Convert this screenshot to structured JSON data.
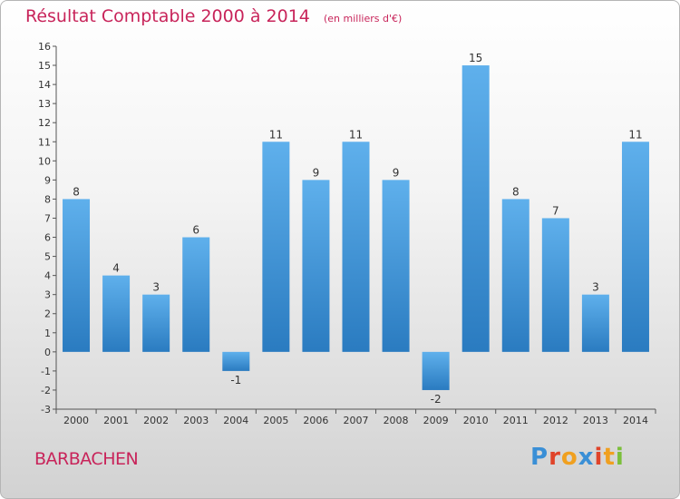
{
  "title": "Résultat Comptable 2000 à 2014",
  "title_unit": "(en milliers d'€)",
  "commune": "BARBACHEN",
  "logo": {
    "text": "Proxiti",
    "letter_colors": [
      "#3a8fd6",
      "#e0442a",
      "#f0a020",
      "#3a8fd6",
      "#e0442a",
      "#f0a020",
      "#7bbf3a"
    ]
  },
  "colors": {
    "bar_light": "#5fb0ec",
    "bar_dark": "#2a7bc0",
    "title": "#c8245a",
    "axis": "#555555"
  },
  "chart_data": {
    "type": "bar",
    "categories": [
      "2000",
      "2001",
      "2002",
      "2003",
      "2004",
      "2005",
      "2006",
      "2007",
      "2008",
      "2009",
      "2010",
      "2011",
      "2012",
      "2013",
      "2014"
    ],
    "values": [
      8,
      4,
      3,
      6,
      -1,
      11,
      9,
      11,
      9,
      -2,
      15,
      8,
      7,
      3,
      11
    ],
    "data_labels": [
      "8",
      "4",
      "3",
      "6",
      "-1",
      "11",
      "9",
      "11",
      "9",
      "-2",
      "15",
      "8",
      "7",
      "3",
      "11"
    ],
    "yticks": [
      -3,
      -2,
      -1,
      0,
      1,
      2,
      3,
      4,
      5,
      6,
      7,
      8,
      9,
      10,
      11,
      12,
      13,
      14,
      15,
      16
    ],
    "ylim": [
      -3,
      16
    ],
    "xlabel": "",
    "ylabel": "",
    "grid": false,
    "legend": "none"
  }
}
